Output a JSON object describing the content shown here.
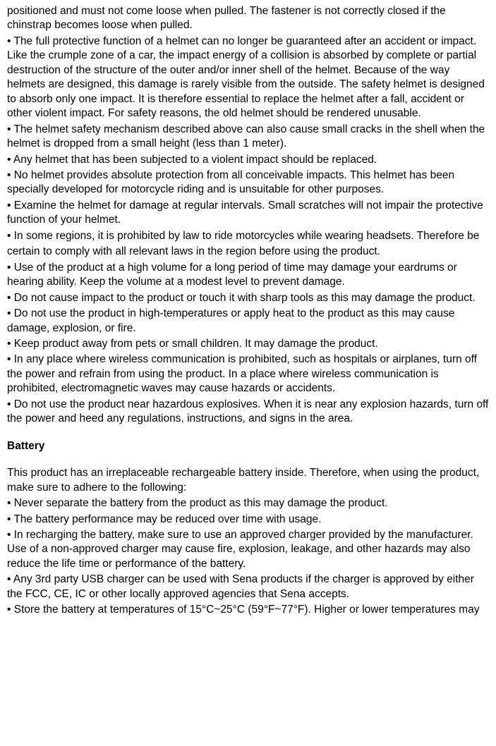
{
  "intro_lines": [
    "positioned and must not come loose when pulled. The fastener is not correctly closed if the chinstrap becomes loose when pulled."
  ],
  "safety_bullets": [
    "• The full protective function of a helmet can no longer be guaranteed after an accident or impact. Like the crumple zone of a car, the impact energy of a collision is absorbed by complete or partial destruction of the structure of the outer and/or inner shell of the helmet. Because of the way helmets are designed, this damage is rarely visible from the outside. The safety helmet is designed to absorb only one impact. It is therefore essential to replace the helmet after a fall, accident or other violent impact. For safety reasons, the old helmet should be rendered unusable.",
    "• The helmet safety mechanism described above can also cause small cracks in the shell when the helmet is dropped from a small height (less than 1 meter).",
    "• Any helmet that has been subjected to a violent impact should be replaced.",
    "• No helmet provides absolute protection from all conceivable impacts. This helmet has been specially developed for motorcycle riding and is unsuitable for other purposes.",
    "• Examine the helmet for damage at regular intervals. Small scratches will not impair the protective function of your helmet.",
    "• In some regions, it is prohibited by law to ride motorcycles while wearing headsets. Therefore be",
    "certain to comply with all relevant laws in the region before using the product.",
    "• Use of the product at a high volume for a long period of time may damage your eardrums or hearing ability. Keep the volume at a modest level to prevent damage.",
    "• Do not cause impact to the product or touch it with sharp tools as this may damage the product.",
    "• Do not use the product in high-temperatures or apply heat to the product as this may cause damage, explosion, or fire.",
    "• Keep product away from pets or small children. It may damage the product.",
    "• In any place where wireless communication is prohibited, such as hospitals or airplanes, turn off the power and refrain from using the product. In a place where wireless communication is prohibited, electromagnetic waves may cause hazards or accidents.",
    "• Do not use the product near hazardous explosives. When it is near any explosion hazards, turn off the power and heed any regulations, instructions, and signs in the area."
  ],
  "battery_title": "Battery",
  "battery_intro": "This product has an irreplaceable rechargeable battery inside. Therefore, when using the product, make sure to adhere to the following:",
  "battery_bullets": [
    "• Never separate the battery from the product as this may damage the product.",
    "• The battery performance may be reduced over time with usage.",
    "• In recharging the battery, make sure to use an approved charger provided by the manufacturer. Use of a non-approved charger may cause fire, explosion, leakage, and other hazards may also reduce the life time or performance of the battery.",
    "• Any 3rd party USB charger can be used with Sena products if the charger is approved by either the FCC, CE, IC or other locally approved agencies that Sena accepts.",
    "• Store the battery at temperatures of 15°C~25°C (59°F~77°F). Higher or lower temperatures may"
  ]
}
